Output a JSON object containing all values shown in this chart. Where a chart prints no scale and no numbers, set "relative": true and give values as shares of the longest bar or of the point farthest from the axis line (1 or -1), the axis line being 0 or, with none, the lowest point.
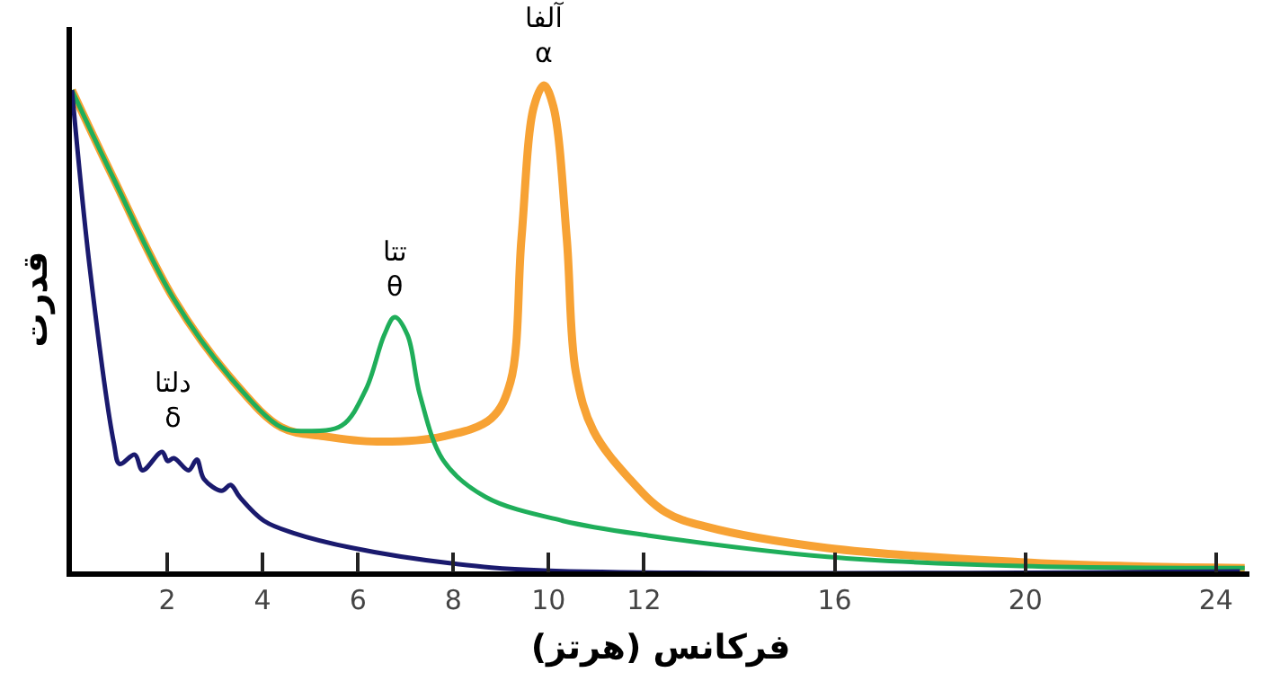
{
  "chart_data": {
    "type": "line",
    "relative": true,
    "xlabel": "فرکانس (هرتز)",
    "ylabel": "قدرت",
    "xlim": [
      0,
      24.7
    ],
    "xticks": [
      2,
      4,
      6,
      8,
      10,
      12,
      16,
      20,
      24
    ],
    "marker": "none",
    "line_style": "solid",
    "series": [
      {
        "color": "#f7a234",
        "x": [
          0,
          0.88,
          2.14,
          3.4,
          4.4,
          5.28,
          6.4,
          7.8,
          8.8,
          9.2,
          9.43,
          9.69,
          9.9,
          10.1,
          10.38,
          10.57,
          10.94,
          11.7,
          12.45,
          13.3,
          15.85,
          19.9,
          22.1,
          24.6
        ],
        "values": [
          0.99,
          0.807,
          0.56,
          0.39,
          0.296,
          0.278,
          0.267,
          0.278,
          0.315,
          0.39,
          0.685,
          0.956,
          1.0,
          0.956,
          0.685,
          0.41,
          0.289,
          0.19,
          0.122,
          0.092,
          0.048,
          0.019,
          0.011,
          0.007
        ]
      },
      {
        "color": "#1fae5a",
        "x": [
          0,
          0.88,
          2.14,
          3.4,
          4.4,
          4.9,
          5.66,
          6.17,
          6.55,
          6.77,
          7.04,
          7.3,
          7.8,
          8.68,
          10.3,
          12.08,
          15.85,
          19.9,
          24.6
        ],
        "values": [
          0.99,
          0.807,
          0.56,
          0.39,
          0.296,
          0.289,
          0.3,
          0.375,
          0.486,
          0.523,
          0.486,
          0.363,
          0.227,
          0.153,
          0.104,
          0.074,
          0.03,
          0.011,
          0.007
        ]
      },
      {
        "color": "#1a1a6e",
        "x": [
          0,
          0.38,
          0.88,
          1.0,
          1.32,
          1.48,
          1.89,
          2.01,
          2.14,
          2.45,
          2.62,
          2.77,
          3.14,
          3.33,
          3.52,
          4.03,
          4.65,
          5.9,
          7.92,
          9.9,
          24.5
        ],
        "values": [
          0.99,
          0.62,
          0.264,
          0.221,
          0.24,
          0.208,
          0.246,
          0.227,
          0.233,
          0.208,
          0.23,
          0.19,
          0.166,
          0.178,
          0.153,
          0.104,
          0.079,
          0.048,
          0.017,
          0.002,
          0.0
        ]
      }
    ],
    "annotations": [
      {
        "text": "آلفا\nα",
        "x": 9.9,
        "y": 1.0
      },
      {
        "text": "تتا\nθ",
        "x": 6.77,
        "y": 0.523
      },
      {
        "text": "دلتا\nδ",
        "x": 2.1,
        "y": 0.25
      }
    ]
  }
}
